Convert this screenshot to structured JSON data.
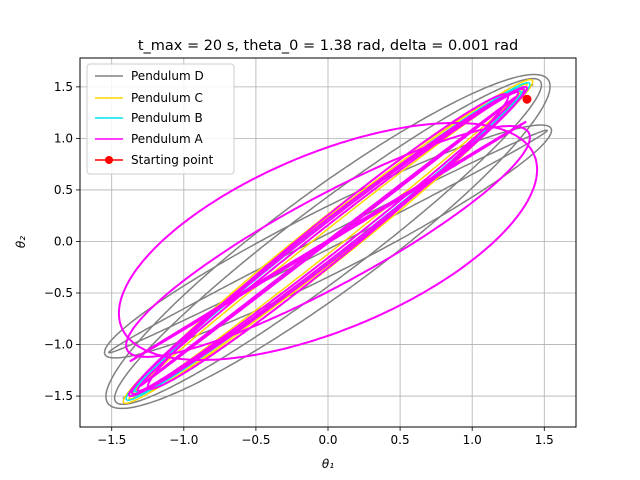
{
  "chart_data": {
    "type": "line",
    "title": "t_max = 20 s, theta_0 = 1.38 rad, delta = 0.001 rad",
    "xlabel": "θ₁",
    "ylabel": "θ₂",
    "xlim": [
      -1.72,
      1.72
    ],
    "ylim": [
      -1.8,
      1.78
    ],
    "xticks": [
      -1.5,
      -1.0,
      -0.5,
      0.0,
      0.5,
      1.0,
      1.5
    ],
    "xtick_labels": [
      "−1.5",
      "−1.0",
      "−0.5",
      "0.0",
      "0.5",
      "1.0",
      "1.5"
    ],
    "yticks": [
      -1.5,
      -1.0,
      -0.5,
      0.0,
      0.5,
      1.0,
      1.5
    ],
    "ytick_labels": [
      "−1.5",
      "−1.0",
      "−0.5",
      "0.0",
      "0.5",
      "1.0",
      "1.5"
    ],
    "grid": true,
    "legend_position": "top-left",
    "series": [
      {
        "name": "Pendulum D",
        "color": "#808080",
        "loops": [
          {
            "a": 1.54,
            "b": 1.62,
            "w": 0.17,
            "ia": -0.3,
            "ib": 0.25
          },
          {
            "a": 1.48,
            "b": 1.58,
            "w": 0.11,
            "ia": 0.05,
            "ib": -0.12
          },
          {
            "a": 1.42,
            "b": 1.52,
            "w": 0.2,
            "ia": -0.05,
            "ib": 0.15
          },
          {
            "a": 1.55,
            "b": 1.13,
            "w": 0.13,
            "ia": 0.4,
            "ib": 0.22
          },
          {
            "a": 1.52,
            "b": 1.08,
            "w": 0.08,
            "ia": -0.35,
            "ib": -0.2
          }
        ]
      },
      {
        "name": "Pendulum C",
        "color": "#FFD700",
        "loops": [
          {
            "a": 1.42,
            "b": 1.57,
            "w": 0.15,
            "ia": 0.0,
            "ib": 0.0
          },
          {
            "a": 1.38,
            "b": 1.53,
            "w": 0.1,
            "ia": 0.1,
            "ib": 0.12
          },
          {
            "a": 1.33,
            "b": 1.48,
            "w": 0.18,
            "ia": -0.1,
            "ib": -0.1
          }
        ]
      },
      {
        "name": "Pendulum B",
        "color": "#00E5EE",
        "loops": [
          {
            "a": 1.4,
            "b": 1.54,
            "w": 0.14,
            "ia": 0.02,
            "ib": 0.02
          },
          {
            "a": 1.36,
            "b": 1.5,
            "w": 0.11,
            "ia": 0.12,
            "ib": 0.1
          },
          {
            "a": 1.34,
            "b": 1.46,
            "w": 0.17,
            "ia": -0.12,
            "ib": -0.1
          }
        ]
      },
      {
        "name": "Pendulum A",
        "color": "#FF00FF",
        "loops": [
          {
            "a": 1.38,
            "b": 1.5,
            "w": 0.13,
            "ia": 0.0,
            "ib": 0.0
          },
          {
            "a": 1.36,
            "b": 1.48,
            "w": 0.1,
            "ia": 0.15,
            "ib": 0.1
          },
          {
            "a": 1.32,
            "b": 1.45,
            "w": 0.16,
            "ia": -0.15,
            "ib": -0.1
          },
          {
            "a": 1.25,
            "b": 1.43,
            "w": 0.08,
            "ia": 0.3,
            "ib": 0.2
          },
          {
            "a": 1.45,
            "b": 1.15,
            "w": 0.12,
            "ia": 0.5,
            "ib": -0.3
          },
          {
            "a": 1.4,
            "b": 1.12,
            "w": 0.1,
            "ia": -0.2,
            "ib": 0.35
          },
          {
            "a": 1.37,
            "b": 1.16,
            "w": 0.14,
            "ia": 0.25,
            "ib": 0.4
          },
          {
            "a": 1.3,
            "b": 1.4,
            "w": 0.06,
            "ia": -0.3,
            "ib": -0.25
          }
        ]
      }
    ],
    "starting_point": {
      "name": "Starting point",
      "x": 1.38,
      "y": 1.38,
      "color": "#FF0000"
    }
  }
}
